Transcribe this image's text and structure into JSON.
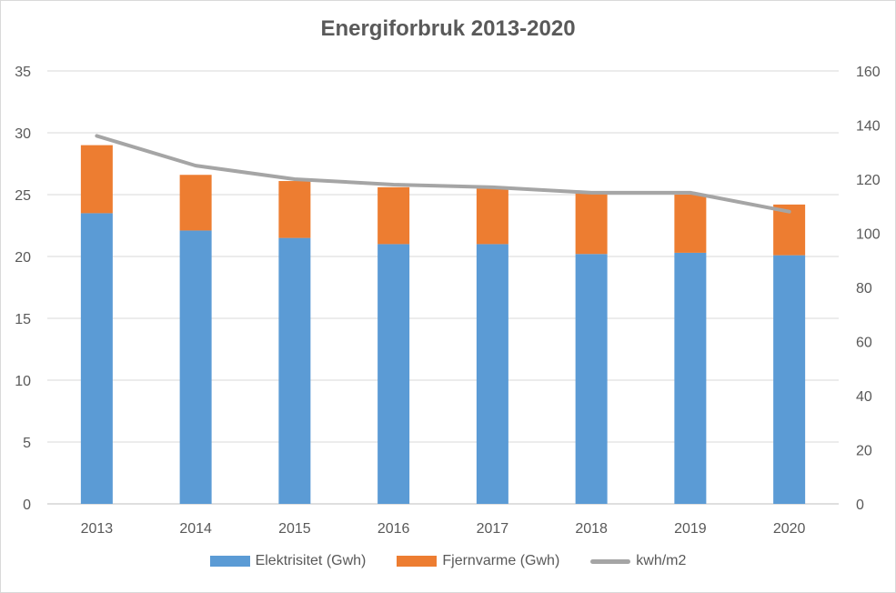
{
  "chart_data": {
    "type": "bar",
    "title": "Energiforbruk 2013-2020",
    "categories": [
      "2013",
      "2014",
      "2015",
      "2016",
      "2017",
      "2018",
      "2019",
      "2020"
    ],
    "series": [
      {
        "name": "Elektrisitet (Gwh)",
        "kind": "stacked-bar",
        "axis": "left",
        "color": "#5b9bd5",
        "values": [
          23.5,
          22.1,
          21.5,
          21.0,
          21.0,
          20.2,
          20.3,
          20.1
        ]
      },
      {
        "name": "Fjernvarme (Gwh)",
        "kind": "stacked-bar",
        "axis": "left",
        "color": "#ed7d31",
        "values": [
          5.5,
          4.5,
          4.6,
          4.6,
          4.5,
          5.0,
          4.7,
          4.1
        ]
      },
      {
        "name": "kwh/m2",
        "kind": "line",
        "axis": "right",
        "color": "#a5a5a5",
        "values": [
          136,
          125,
          120,
          118,
          117,
          115,
          115,
          108
        ]
      }
    ],
    "y_left": {
      "min": 0,
      "max": 35,
      "step": 5,
      "ticks": [
        "0",
        "5",
        "10",
        "15",
        "20",
        "25",
        "30",
        "35"
      ]
    },
    "y_right": {
      "min": 0,
      "max": 160,
      "step": 20,
      "ticks": [
        "0",
        "20",
        "40",
        "60",
        "80",
        "100",
        "120",
        "140",
        "160"
      ]
    },
    "grid": true,
    "legend_position": "bottom"
  }
}
